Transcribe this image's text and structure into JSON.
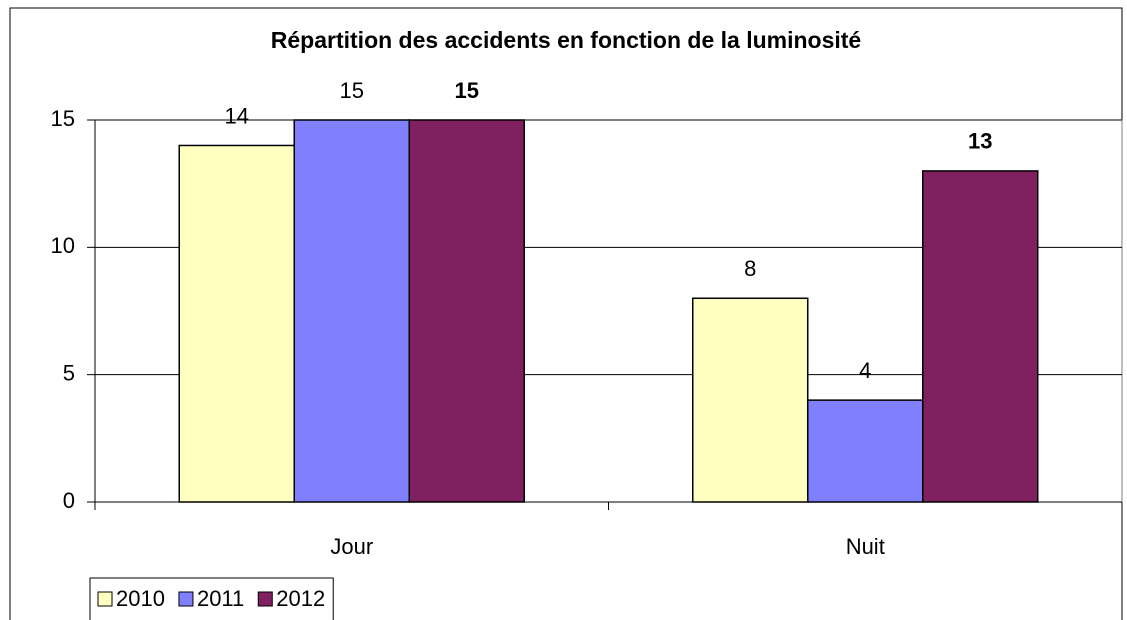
{
  "chart_data": {
    "type": "bar",
    "title": "Répartition des accidents en fonction de la luminosité",
    "categories": [
      "Jour",
      "Nuit"
    ],
    "series": [
      {
        "name": "2010",
        "color": "#ffffc0",
        "values": [
          14,
          8
        ],
        "label_weight": "normal"
      },
      {
        "name": "2011",
        "color": "#8080ff",
        "values": [
          15,
          4
        ],
        "label_weight": "normal"
      },
      {
        "name": "2012",
        "color": "#802060",
        "values": [
          15,
          13
        ],
        "label_weight": "bold"
      }
    ],
    "ylim": [
      0,
      15
    ],
    "yticks": [
      0,
      5,
      10,
      15
    ],
    "grid": true,
    "legend": "bottom-left"
  }
}
